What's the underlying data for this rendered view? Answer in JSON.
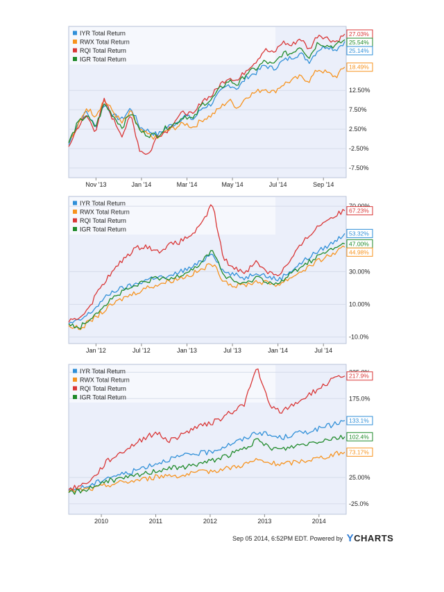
{
  "colors": {
    "IYR": "#2f8fd8",
    "RWX": "#f7931e",
    "RQI": "#d93636",
    "IGR": "#1f8a2a",
    "plot_bg": "#ebeffa",
    "plot_border": "#b9c3d8"
  },
  "footer": {
    "timestamp": "Sep 05 2014, 6:52PM EDT.",
    "powered_by": "Powered by",
    "brand": "CHARTS",
    "brand_initial": "Y"
  },
  "chart_data": [
    {
      "type": "line",
      "legend_position": "top-left",
      "x_ticks": [
        "Nov '13",
        "Jan '14",
        "Mar '14",
        "May '14",
        "Jul '14",
        "Sep '14"
      ],
      "y_ticks": [
        "12.50%",
        "7.50%",
        "2.50%",
        "-2.50%",
        "-7.50%"
      ],
      "y_tick_values": [
        12.5,
        7.5,
        2.5,
        -2.5,
        -7.5
      ],
      "ylim": [
        -10,
        29
      ],
      "series": [
        {
          "name": "IYR Total Return",
          "key": "IYR",
          "end_label": "25.14%",
          "values": [
            -1.5,
            4,
            7,
            3,
            9,
            6,
            5,
            8,
            3,
            2,
            1,
            3,
            4,
            6,
            5,
            8,
            9,
            12,
            14,
            13,
            16,
            17,
            19,
            18,
            20,
            21,
            22,
            20,
            23,
            24,
            23,
            25.14
          ]
        },
        {
          "name": "RWX Total Return",
          "key": "RWX",
          "end_label": "18.49%",
          "values": [
            -1,
            3,
            8,
            6,
            10,
            7,
            4,
            7,
            2,
            1,
            0,
            2,
            3,
            4,
            3,
            5,
            6,
            8,
            10,
            8,
            11,
            12,
            13,
            12,
            14,
            15,
            16,
            15,
            18,
            17,
            16,
            18.49
          ]
        },
        {
          "name": "RQI Total Return",
          "key": "RQI",
          "end_label": "27.03%",
          "values": [
            -2,
            3,
            6,
            2,
            10,
            5,
            1,
            6,
            -3,
            -4,
            1,
            2,
            5,
            7,
            6,
            10,
            11,
            14,
            16,
            15,
            18,
            20,
            23,
            22,
            25,
            24,
            26,
            23,
            27,
            26,
            25,
            27.03
          ]
        },
        {
          "name": "IGR Total Return",
          "key": "IGR",
          "end_label": "25.54%",
          "values": [
            -1,
            4,
            6,
            3,
            9,
            6,
            3,
            7,
            2,
            1,
            1,
            3,
            4,
            6,
            5,
            9,
            10,
            13,
            15,
            14,
            17,
            18,
            20,
            19,
            22,
            22,
            24,
            21,
            25,
            24,
            24,
            25.54
          ]
        }
      ]
    },
    {
      "type": "line",
      "legend_position": "top-left",
      "x_ticks": [
        "Jan '12",
        "Jul '12",
        "Jan '13",
        "Jul '13",
        "Jan '14",
        "Jul '14"
      ],
      "y_ticks": [
        "70.00%",
        "30.00%",
        "10.00%",
        "-10.0%"
      ],
      "y_tick_values": [
        70,
        30,
        10,
        -10
      ],
      "ylim": [
        -14,
        76
      ],
      "series": [
        {
          "name": "IYR Total Return",
          "key": "IYR",
          "end_label": "53.32%",
          "values": [
            -2,
            0,
            5,
            12,
            18,
            20,
            22,
            25,
            27,
            26,
            30,
            32,
            36,
            42,
            30,
            28,
            26,
            30,
            27,
            25,
            30,
            35,
            40,
            44,
            48,
            53.32
          ]
        },
        {
          "name": "RWX Total Return",
          "key": "RWX",
          "end_label": "44.98%",
          "values": [
            -3,
            -5,
            0,
            5,
            10,
            14,
            17,
            20,
            22,
            24,
            26,
            28,
            31,
            35,
            25,
            21,
            22,
            24,
            23,
            22,
            26,
            30,
            34,
            38,
            41,
            44.98
          ]
        },
        {
          "name": "RQI Total Return",
          "key": "RQI",
          "end_label": "67.23%",
          "values": [
            -1,
            2,
            10,
            22,
            30,
            38,
            44,
            46,
            42,
            46,
            48,
            52,
            58,
            72,
            38,
            32,
            30,
            36,
            30,
            28,
            36,
            46,
            54,
            60,
            64,
            67.23
          ]
        },
        {
          "name": "IGR Total Return",
          "key": "IGR",
          "end_label": "47.00%",
          "values": [
            -2,
            -4,
            2,
            8,
            14,
            18,
            21,
            24,
            26,
            25,
            28,
            31,
            35,
            44,
            28,
            24,
            22,
            27,
            24,
            22,
            28,
            33,
            37,
            41,
            44,
            47.0
          ]
        }
      ]
    },
    {
      "type": "line",
      "legend_position": "top-left",
      "x_ticks": [
        "2010",
        "2011",
        "2012",
        "2013",
        "2014"
      ],
      "y_ticks": [
        "225.0%",
        "175.0%",
        "25.00%",
        "-25.0%"
      ],
      "y_tick_values": [
        225,
        175,
        25,
        -25
      ],
      "ylim": [
        -45,
        240
      ],
      "series": [
        {
          "name": "IYR Total Return",
          "key": "IYR",
          "end_label": "133.1%",
          "values": [
            0,
            5,
            12,
            25,
            30,
            35,
            45,
            52,
            60,
            65,
            70,
            72,
            80,
            90,
            98,
            112,
            105,
            100,
            108,
            112,
            118,
            125,
            133.1
          ]
        },
        {
          "name": "RWX Total Return",
          "key": "RWX",
          "end_label": "73.17%",
          "values": [
            -2,
            2,
            4,
            10,
            15,
            18,
            22,
            26,
            30,
            28,
            33,
            36,
            40,
            44,
            50,
            58,
            52,
            50,
            54,
            58,
            62,
            68,
            73.17
          ]
        },
        {
          "name": "RQI Total Return",
          "key": "RQI",
          "end_label": "217.9%",
          "values": [
            2,
            10,
            25,
            55,
            70,
            85,
            100,
            110,
            95,
            105,
            120,
            125,
            135,
            150,
            165,
            235,
            160,
            150,
            165,
            180,
            195,
            210,
            217.9
          ]
        },
        {
          "name": "IGR Total Return",
          "key": "IGR",
          "end_label": "102.4%",
          "values": [
            -4,
            0,
            8,
            18,
            22,
            26,
            32,
            38,
            44,
            42,
            50,
            54,
            62,
            70,
            80,
            95,
            82,
            78,
            85,
            90,
            95,
            100,
            102.4
          ]
        }
      ]
    }
  ]
}
